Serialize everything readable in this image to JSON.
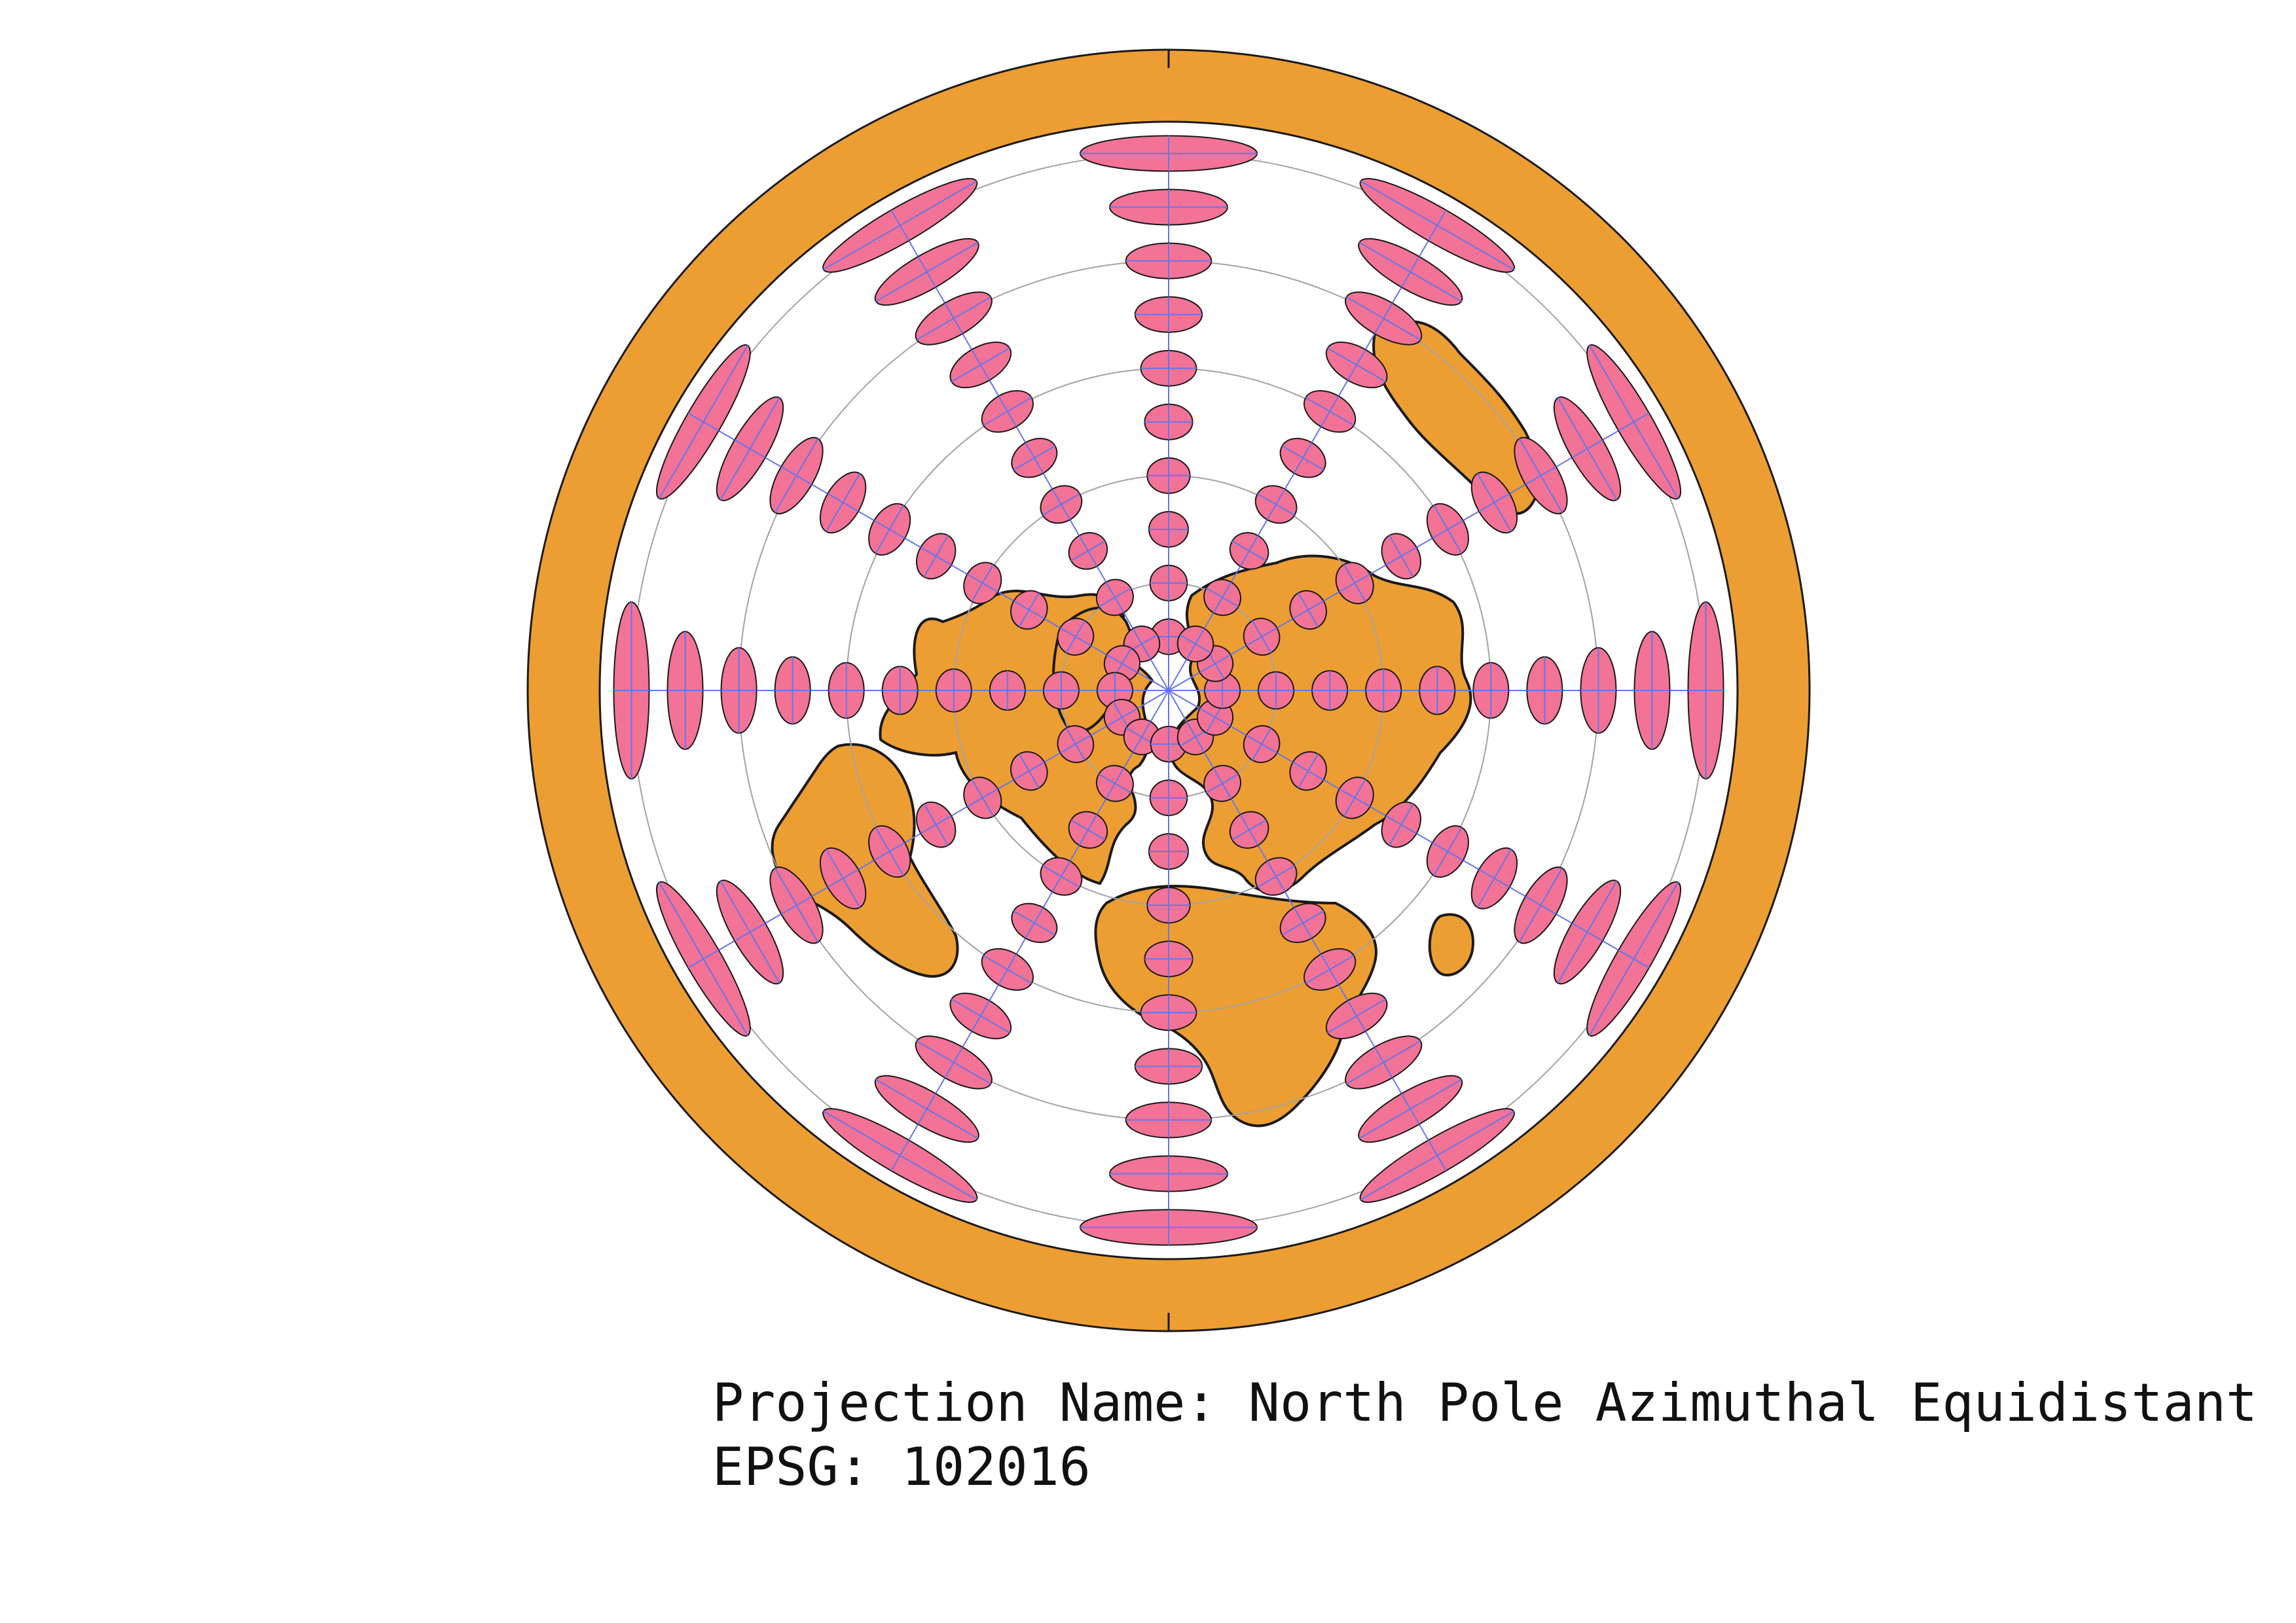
{
  "caption": {
    "projection_line": "Projection Name: North Pole Azimuthal Equidistant",
    "epsg_line": "EPSG: 102016"
  },
  "map": {
    "projection": "North Pole Azimuthal Equidistant",
    "epsg": 102016,
    "center": "North Pole",
    "graticule_latitudes_deg": [
      60,
      30,
      0,
      -30,
      -60
    ],
    "graticule_meridian_spacing_deg": 30,
    "tissot_latitudes_deg": [
      75,
      60,
      45,
      30,
      15,
      0,
      -15,
      -30,
      -45,
      -60
    ]
  },
  "colors": {
    "land": "#ed9e33",
    "coastline": "#1a1a1a",
    "ocean": "#ffffff",
    "tissot_fill": "#f27396",
    "graticule_parallel": "#a3a3a3",
    "graticule_meridian": "#6675ea",
    "caption_text": "#111111"
  }
}
